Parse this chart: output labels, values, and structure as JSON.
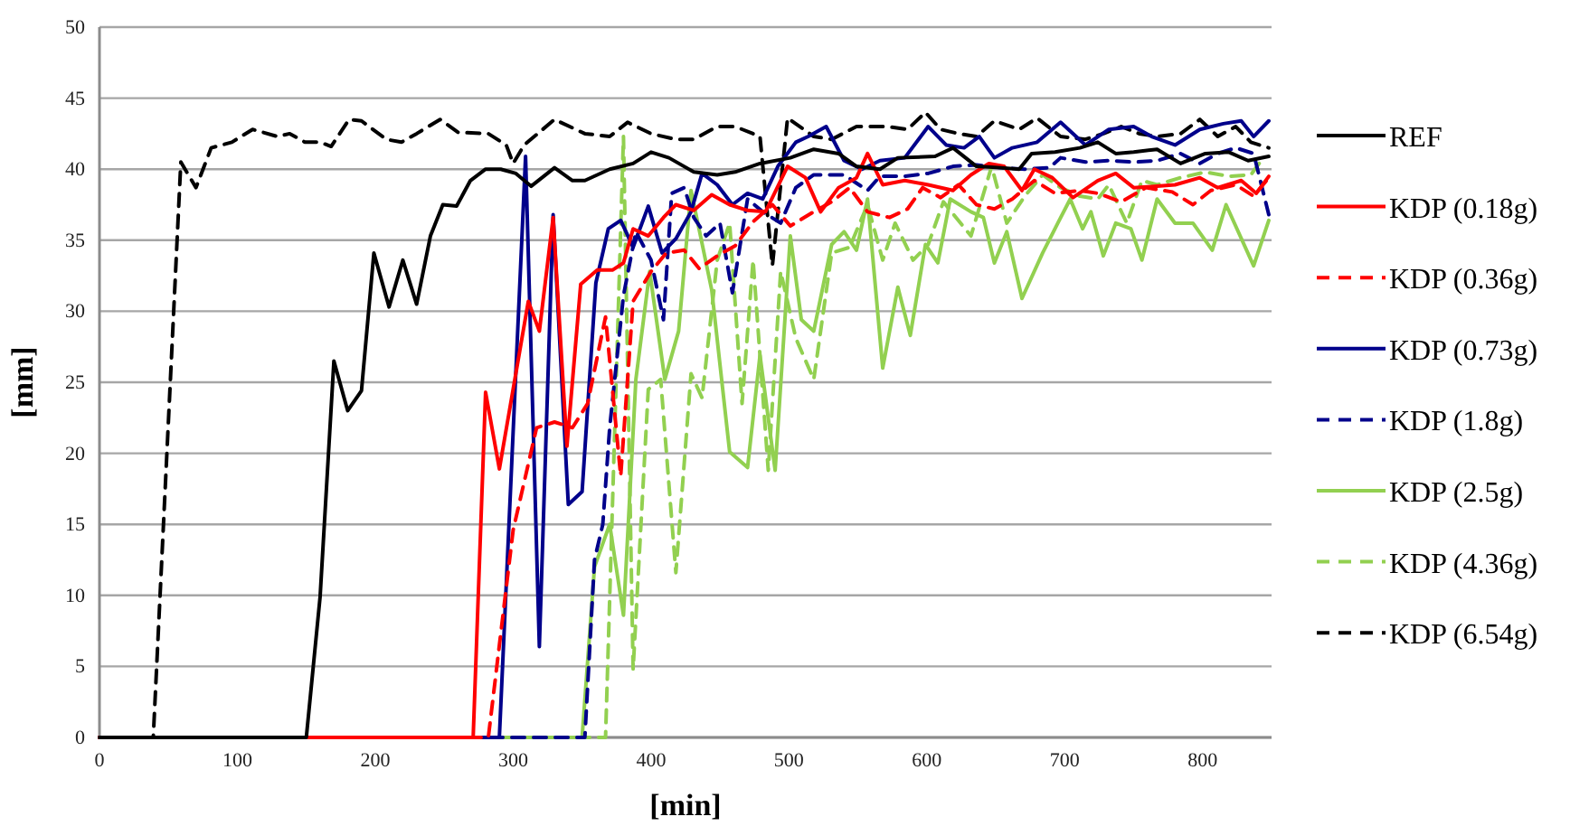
{
  "chart_data": {
    "type": "line",
    "xlabel": "[min]",
    "ylabel": "[mm]",
    "xlim": [
      0,
      850
    ],
    "xticks": [
      0,
      100,
      200,
      300,
      400,
      500,
      600,
      700,
      800
    ],
    "ylim": [
      0,
      50
    ],
    "yticks": [
      0,
      5,
      10,
      15,
      20,
      25,
      30,
      35,
      40,
      45,
      50
    ],
    "grid": "y",
    "legend": "right",
    "marker": "none",
    "series": [
      {
        "name": "REF",
        "color": "#000000",
        "line_style": "solid",
        "x": [
          0,
          150,
          160,
          170,
          180,
          190,
          199,
          210,
          220,
          230,
          240,
          249,
          259,
          269,
          280,
          291,
          302,
          313,
          330,
          343,
          352,
          370,
          387,
          400,
          413,
          431,
          448,
          461,
          479,
          501,
          518,
          536,
          549,
          566,
          579,
          606,
          619,
          636,
          654,
          667,
          676,
          693,
          711,
          724,
          737,
          750,
          767,
          784,
          802,
          819,
          833,
          848
        ],
        "values": [
          0,
          0,
          9.9,
          26.5,
          23,
          24.4,
          34.1,
          30.3,
          33.6,
          30.5,
          35.3,
          37.5,
          37.4,
          39.2,
          40,
          40,
          39.7,
          38.8,
          40.1,
          39.2,
          39.2,
          40,
          40.4,
          41.2,
          40.8,
          39.8,
          39.6,
          39.8,
          40.4,
          40.8,
          41.4,
          41.1,
          40.2,
          40,
          40.8,
          40.9,
          41.5,
          40.2,
          40.1,
          40,
          41.1,
          41.2,
          41.5,
          41.9,
          41.1,
          41.2,
          41.4,
          40.4,
          41.1,
          41.2,
          40.6,
          40.9
        ]
      },
      {
        "name": "KDP (0.18g)",
        "color": "#ff0000",
        "line_style": "solid",
        "x": [
          0,
          271,
          280,
          290,
          311,
          319,
          329,
          339,
          349,
          361,
          372,
          380,
          387,
          398,
          409,
          418,
          431,
          444,
          457,
          470,
          483,
          499,
          512,
          523,
          536,
          549,
          557,
          568,
          584,
          601,
          619,
          632,
          645,
          656,
          669,
          678,
          691,
          706,
          724,
          737,
          750,
          767,
          780,
          798,
          811,
          828,
          839,
          848
        ],
        "values": [
          0,
          0,
          24.3,
          18.9,
          30.7,
          28.6,
          36.6,
          20.5,
          31.9,
          32.9,
          32.9,
          33.4,
          35.8,
          35.3,
          36.6,
          37.5,
          37.1,
          38.2,
          37.5,
          37.1,
          37,
          40.2,
          39.4,
          37,
          38.7,
          39.4,
          41.1,
          38.9,
          39.2,
          38.9,
          38.5,
          39.6,
          40.4,
          40.2,
          38.5,
          40,
          39.4,
          38,
          39.2,
          39.7,
          38.7,
          38.8,
          38.9,
          39.4,
          38.7,
          39.2,
          38.3,
          39.5
        ]
      },
      {
        "name": "KDP (0.36g)",
        "color": "#ff0000",
        "line_style": "dashed",
        "x": [
          0,
          282,
          300,
          317,
          330,
          343,
          354,
          367,
          378,
          387,
          400,
          411,
          424,
          435,
          448,
          461,
          474,
          488,
          501,
          518,
          531,
          544,
          557,
          573,
          586,
          597,
          610,
          623,
          636,
          649,
          662,
          678,
          693,
          711,
          724,
          741,
          759,
          778,
          793,
          806,
          824,
          837,
          848
        ],
        "values": [
          0,
          0,
          14.6,
          21.8,
          22.2,
          21.8,
          23.5,
          29.6,
          18.4,
          30.7,
          32.8,
          34.1,
          34.3,
          33,
          33.9,
          34.6,
          36.3,
          37.5,
          36,
          37,
          37.7,
          38.7,
          37,
          36.6,
          37.2,
          38.7,
          38,
          38.9,
          37.5,
          37.2,
          37.9,
          39.2,
          38.3,
          38.5,
          38.3,
          37.7,
          38.7,
          38.4,
          37.5,
          38.5,
          38.9,
          38.1,
          39.4
        ]
      },
      {
        "name": "KDP (0.73g)",
        "color": "#00008b",
        "line_style": "solid",
        "x": [
          0,
          290,
          309,
          319,
          329,
          340,
          350,
          360,
          369,
          378,
          387,
          398,
          408,
          418,
          429,
          437,
          448,
          459,
          470,
          481,
          492,
          505,
          514,
          527,
          540,
          553,
          566,
          584,
          601,
          614,
          627,
          638,
          649,
          662,
          680,
          697,
          715,
          732,
          750,
          763,
          780,
          798,
          815,
          828,
          837,
          848
        ],
        "values": [
          0,
          0,
          40.9,
          6.4,
          36.8,
          16.4,
          17.3,
          32,
          35.8,
          36.4,
          34.5,
          37.4,
          34.1,
          35.1,
          37,
          39.7,
          38.9,
          37.5,
          38.3,
          37.9,
          40.2,
          41.9,
          42.3,
          43,
          40.6,
          40,
          40.6,
          40.8,
          43,
          41.7,
          41.5,
          42.3,
          40.8,
          41.5,
          41.9,
          43.3,
          41.7,
          42.8,
          43,
          42.3,
          41.7,
          42.8,
          43.2,
          43.4,
          42.3,
          43.4
        ]
      },
      {
        "name": "KDP (1.8g)",
        "color": "#00008b",
        "line_style": "dashed",
        "x": [
          0,
          352,
          359,
          365,
          370,
          380,
          389,
          400,
          409,
          415,
          424,
          431,
          440,
          450,
          459,
          470,
          481,
          494,
          505,
          518,
          540,
          557,
          566,
          584,
          601,
          619,
          636,
          654,
          671,
          689,
          697,
          715,
          732,
          750,
          767,
          784,
          798,
          811,
          824,
          837,
          848
        ],
        "values": [
          0,
          0,
          12.5,
          15,
          21.8,
          31.1,
          35.6,
          33.6,
          29.4,
          38.3,
          38.7,
          36.6,
          35.3,
          36.2,
          31.3,
          37.9,
          37,
          36.2,
          38.7,
          39.6,
          39.6,
          38.5,
          39.5,
          39.5,
          39.7,
          40.2,
          40.3,
          40.1,
          40,
          40.1,
          40.8,
          40.5,
          40.6,
          40.5,
          40.6,
          41.1,
          40.4,
          41.1,
          41.5,
          41.1,
          36.8
        ]
      },
      {
        "name": "KDP (2.5g)",
        "color": "#92d050",
        "line_style": "solid",
        "x": [
          0,
          350,
          359,
          370,
          380,
          389,
          399,
          410,
          420,
          429,
          444,
          457,
          470,
          479,
          490,
          501,
          509,
          518,
          531,
          540,
          549,
          557,
          568,
          579,
          588,
          599,
          608,
          617,
          632,
          641,
          649,
          658,
          669,
          684,
          695,
          704,
          713,
          719,
          728,
          737,
          748,
          756,
          767,
          780,
          793,
          807,
          817,
          837,
          848
        ],
        "values": [
          0,
          0,
          12,
          15,
          8.6,
          25.2,
          32.8,
          25.2,
          28.6,
          38.5,
          31.5,
          20.1,
          19,
          26.9,
          18.8,
          35.3,
          29.4,
          28.6,
          34.7,
          35.6,
          34.3,
          37.9,
          26,
          31.7,
          28.3,
          34.7,
          33.4,
          37.9,
          37,
          36.6,
          33.4,
          35.6,
          30.9,
          34.1,
          36.2,
          37.9,
          35.8,
          37,
          33.9,
          36.2,
          35.8,
          33.6,
          37.9,
          36.2,
          36.2,
          34.3,
          37.5,
          33.2,
          36.4
        ]
      },
      {
        "name": "KDP (4.36g)",
        "color": "#92d050",
        "line_style": "dashed",
        "x": [
          0,
          367,
          380,
          387,
          398,
          407,
          418,
          429,
          437,
          448,
          457,
          466,
          474,
          485,
          494,
          505,
          518,
          531,
          544,
          557,
          568,
          577,
          590,
          601,
          612,
          632,
          647,
          658,
          671,
          684,
          697,
          711,
          724,
          732,
          745,
          756,
          767,
          784,
          802,
          819,
          835,
          841
        ],
        "values": [
          0,
          0,
          42.3,
          4.8,
          24.5,
          25.2,
          11.6,
          25.6,
          23.9,
          33.6,
          36.2,
          23.5,
          33.6,
          18.8,
          32.8,
          28.1,
          25.2,
          34.1,
          34.5,
          37.5,
          33.6,
          36.2,
          33.6,
          34.7,
          37.7,
          35.3,
          40.2,
          36.2,
          38.1,
          39.6,
          38.7,
          38.1,
          37.9,
          38.9,
          36.2,
          39.2,
          38.9,
          39.4,
          39.8,
          39.5,
          39.6,
          40.4
        ]
      },
      {
        "name": "KDP (6.54g)",
        "color": "#000000",
        "line_style": "dashed",
        "x": [
          0,
          39,
          59,
          70,
          81,
          96,
          111,
          129,
          138,
          149,
          160,
          168,
          181,
          190,
          208,
          219,
          230,
          247,
          260,
          282,
          295,
          300,
          308,
          330,
          352,
          370,
          383,
          400,
          418,
          431,
          448,
          461,
          479,
          488,
          499,
          518,
          531,
          549,
          571,
          586,
          599,
          610,
          623,
          636,
          649,
          667,
          680,
          697,
          715,
          728,
          741,
          754,
          767,
          784,
          798,
          811,
          824,
          835,
          848
        ],
        "values": [
          0,
          0,
          40.5,
          38.7,
          41.5,
          41.9,
          42.8,
          42.3,
          42.5,
          41.9,
          41.9,
          41.6,
          43.5,
          43.4,
          42.1,
          41.9,
          42.5,
          43.5,
          42.6,
          42.5,
          41.7,
          40.4,
          41.7,
          43.5,
          42.5,
          42.3,
          43.3,
          42.5,
          42.1,
          42.1,
          43,
          43,
          42.3,
          33.2,
          43.6,
          42.3,
          42.1,
          43,
          43,
          42.8,
          44,
          42.8,
          42.5,
          42.3,
          43.4,
          42.8,
          43.6,
          42.3,
          42.1,
          42.5,
          43,
          42.5,
          42.3,
          42.5,
          43.5,
          42.3,
          43,
          41.9,
          41.5
        ]
      }
    ]
  }
}
